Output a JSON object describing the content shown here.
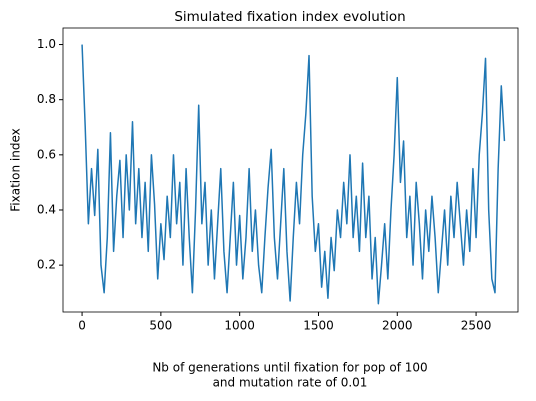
{
  "chart_data": {
    "type": "line",
    "title": "Simulated fixation index evolution",
    "xlabel": [
      "Nb of generations until fixation for pop of 100",
      "and mutation rate of 0.01"
    ],
    "ylabel": "Fixation index",
    "xlim": [
      -121,
      2766
    ],
    "xticks": [
      0,
      500,
      1000,
      1500,
      2000,
      2500
    ],
    "ylim": [
      0.03,
      1.06
    ],
    "yticks": [
      0.2,
      0.4,
      0.6,
      0.8,
      {
        "value": 1.0,
        "label": "1.0"
      }
    ],
    "grid": false,
    "x": [
      0,
      20,
      40,
      60,
      80,
      100,
      120,
      140,
      160,
      180,
      200,
      220,
      240,
      260,
      280,
      300,
      320,
      340,
      360,
      380,
      400,
      420,
      440,
      460,
      480,
      500,
      520,
      540,
      560,
      580,
      600,
      620,
      640,
      660,
      680,
      700,
      720,
      740,
      760,
      780,
      800,
      820,
      840,
      860,
      880,
      900,
      920,
      940,
      960,
      980,
      1000,
      1020,
      1040,
      1060,
      1080,
      1100,
      1120,
      1140,
      1160,
      1180,
      1200,
      1220,
      1240,
      1260,
      1280,
      1300,
      1320,
      1340,
      1360,
      1380,
      1400,
      1420,
      1440,
      1460,
      1480,
      1500,
      1520,
      1540,
      1560,
      1580,
      1600,
      1620,
      1640,
      1660,
      1680,
      1700,
      1720,
      1740,
      1760,
      1780,
      1800,
      1820,
      1840,
      1860,
      1880,
      1900,
      1920,
      1940,
      1960,
      1980,
      2000,
      2020,
      2040,
      2060,
      2080,
      2100,
      2120,
      2140,
      2160,
      2180,
      2200,
      2220,
      2240,
      2260,
      2280,
      2300,
      2320,
      2340,
      2360,
      2380,
      2400,
      2420,
      2440,
      2460,
      2480,
      2500,
      2520,
      2540,
      2560,
      2580,
      2600,
      2620,
      2640,
      2660,
      2680
    ],
    "series": [
      {
        "color": "#1f77b4",
        "values": [
          1.0,
          0.7,
          0.35,
          0.55,
          0.38,
          0.62,
          0.2,
          0.1,
          0.3,
          0.68,
          0.25,
          0.45,
          0.58,
          0.3,
          0.6,
          0.4,
          0.72,
          0.35,
          0.55,
          0.3,
          0.5,
          0.25,
          0.6,
          0.42,
          0.15,
          0.35,
          0.22,
          0.45,
          0.3,
          0.6,
          0.35,
          0.5,
          0.2,
          0.55,
          0.3,
          0.1,
          0.4,
          0.78,
          0.35,
          0.5,
          0.2,
          0.4,
          0.15,
          0.35,
          0.55,
          0.25,
          0.1,
          0.3,
          0.5,
          0.2,
          0.38,
          0.15,
          0.3,
          0.55,
          0.25,
          0.4,
          0.2,
          0.1,
          0.3,
          0.48,
          0.62,
          0.3,
          0.15,
          0.35,
          0.55,
          0.25,
          0.07,
          0.3,
          0.5,
          0.35,
          0.6,
          0.75,
          0.96,
          0.45,
          0.25,
          0.35,
          0.12,
          0.25,
          0.08,
          0.3,
          0.18,
          0.4,
          0.3,
          0.5,
          0.35,
          0.6,
          0.3,
          0.45,
          0.25,
          0.57,
          0.3,
          0.45,
          0.15,
          0.3,
          0.06,
          0.2,
          0.35,
          0.15,
          0.4,
          0.6,
          0.88,
          0.5,
          0.65,
          0.3,
          0.45,
          0.2,
          0.5,
          0.35,
          0.15,
          0.4,
          0.25,
          0.45,
          0.3,
          0.1,
          0.25,
          0.4,
          0.2,
          0.45,
          0.3,
          0.5,
          0.35,
          0.2,
          0.4,
          0.25,
          0.55,
          0.3,
          0.6,
          0.75,
          0.95,
          0.4,
          0.15,
          0.1,
          0.55,
          0.85,
          0.65
        ]
      }
    ]
  }
}
